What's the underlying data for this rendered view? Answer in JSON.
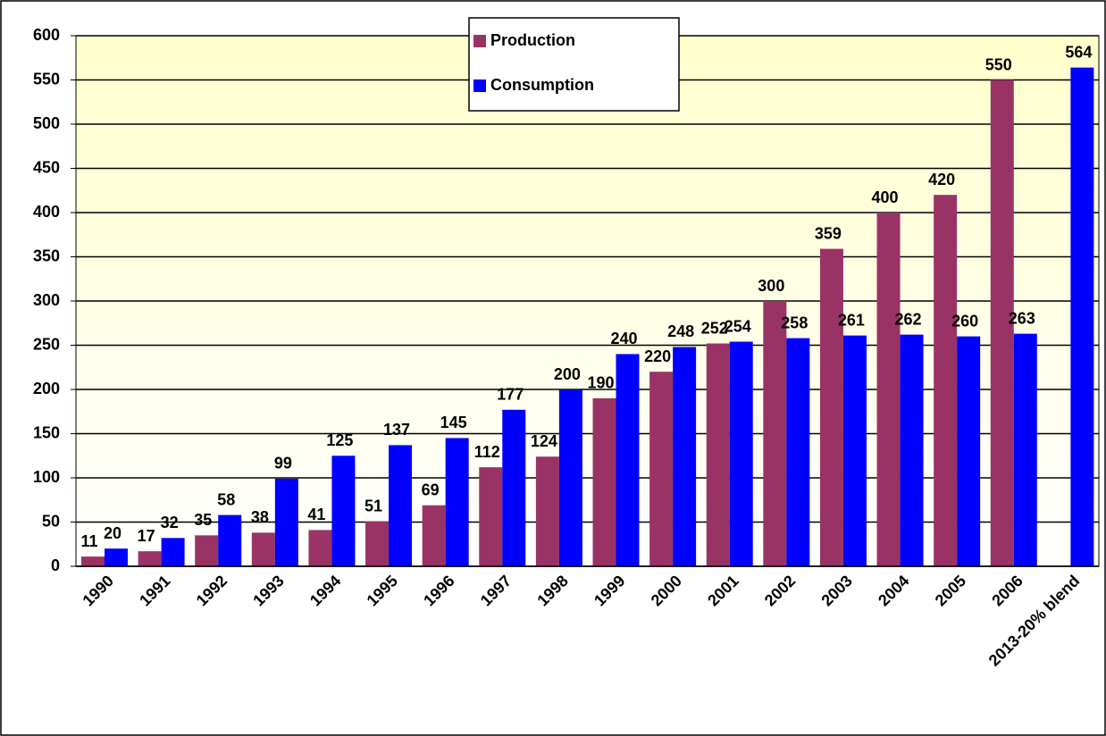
{
  "chart_data": {
    "type": "bar",
    "categories": [
      "1990",
      "1991",
      "1992",
      "1993",
      "1994",
      "1995",
      "1996",
      "1997",
      "1998",
      "1999",
      "2000",
      "2001",
      "2002",
      "2003",
      "2004",
      "2005",
      "2006",
      "2013-20% blend"
    ],
    "series": [
      {
        "name": "Production",
        "color": "#993366",
        "values": [
          11,
          17,
          35,
          38,
          41,
          51,
          69,
          112,
          124,
          190,
          220,
          252,
          300,
          359,
          400,
          420,
          550,
          null
        ]
      },
      {
        "name": "Consumption",
        "color": "#0000ff",
        "values": [
          20,
          32,
          58,
          99,
          125,
          137,
          145,
          177,
          200,
          240,
          248,
          254,
          258,
          261,
          262,
          260,
          263,
          564
        ]
      }
    ],
    "ylim": [
      0,
      600
    ],
    "yticks": [
      0,
      50,
      100,
      150,
      200,
      250,
      300,
      350,
      400,
      450,
      500,
      550,
      600
    ],
    "grid": true,
    "legend": "top"
  }
}
